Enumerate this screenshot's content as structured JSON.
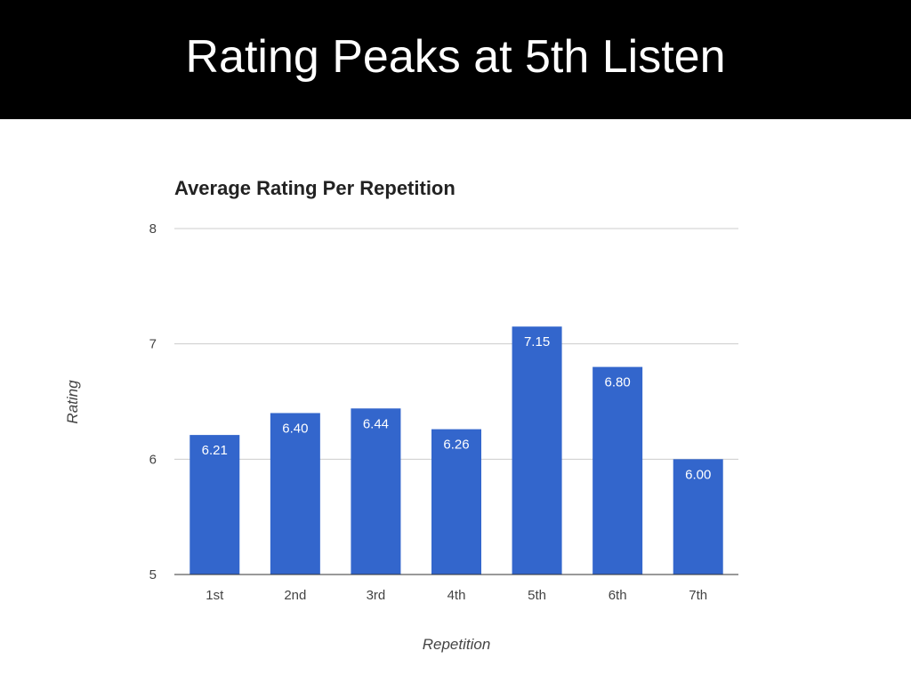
{
  "slide": {
    "title": "Rating Peaks at 5th Listen"
  },
  "chart_data": {
    "type": "bar",
    "title": "Average Rating Per Repetition",
    "xlabel": "Repetition",
    "ylabel": "Rating",
    "categories": [
      "1st",
      "2nd",
      "3rd",
      "4th",
      "5th",
      "6th",
      "7th"
    ],
    "values": [
      6.21,
      6.4,
      6.44,
      6.26,
      7.15,
      6.8,
      6.0
    ],
    "data_labels": [
      "6.21",
      "6.40",
      "6.44",
      "6.26",
      "7.15",
      "6.80",
      "6.00"
    ],
    "ylim": [
      5,
      8
    ],
    "yticks": [
      "5",
      "6",
      "7",
      "8"
    ],
    "grid": true,
    "bar_color": "#3366cc"
  }
}
